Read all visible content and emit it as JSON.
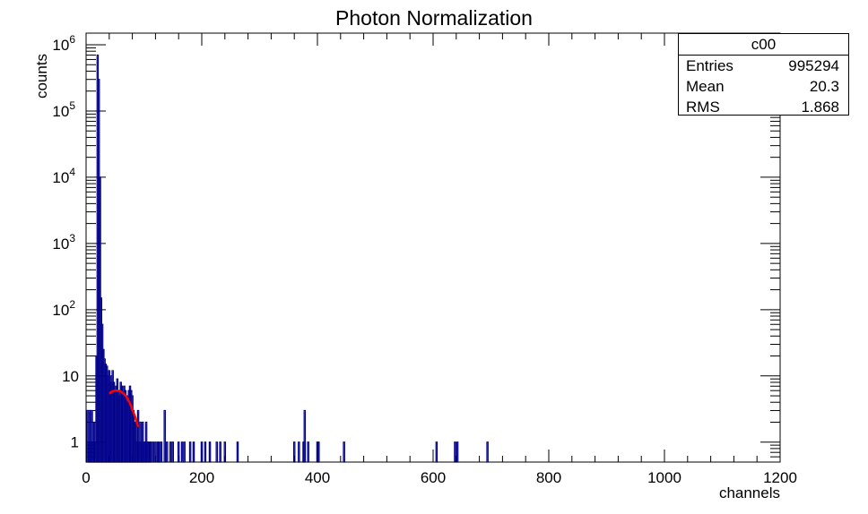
{
  "chart_data": {
    "type": "bar",
    "title": "Photon Normalization",
    "xlabel": "channels",
    "ylabel": "counts",
    "xlim": [
      0,
      1200
    ],
    "ylim": [
      0.5,
      1500000
    ],
    "yscale": "log",
    "x_ticks": [
      "0",
      "200",
      "400",
      "600",
      "800",
      "1000",
      "1200"
    ],
    "y_ticks": [
      {
        "base": "1",
        "exp": ""
      },
      {
        "base": "10",
        "exp": ""
      },
      {
        "base": "10",
        "exp": "2"
      },
      {
        "base": "10",
        "exp": "3"
      },
      {
        "base": "10",
        "exp": "4"
      },
      {
        "base": "10",
        "exp": "5"
      },
      {
        "base": "10",
        "exp": "6"
      }
    ],
    "series": [
      {
        "type": "histogram",
        "color": "#00008b",
        "bin_width": 2,
        "x": [
          2,
          4,
          6,
          8,
          10,
          12,
          14,
          16,
          18,
          20,
          22,
          24,
          26,
          28,
          30,
          32,
          34,
          36,
          38,
          40,
          42,
          44,
          46,
          48,
          50,
          52,
          54,
          56,
          58,
          60,
          62,
          64,
          66,
          68,
          70,
          72,
          74,
          76,
          78,
          80,
          82,
          84,
          86,
          88,
          90,
          92,
          94,
          96,
          98,
          100,
          102,
          104,
          106,
          108,
          110,
          112,
          116,
          120,
          124,
          126,
          130,
          136,
          140,
          146,
          150,
          160,
          166,
          170,
          180,
          186,
          200,
          206,
          214,
          226,
          232,
          240,
          262,
          360,
          368,
          376,
          378,
          384,
          400,
          402,
          446,
          606,
          638,
          642,
          694
        ],
        "y": [
          3,
          1,
          3,
          1,
          3,
          1,
          2,
          1,
          20,
          700000,
          300000,
          10000,
          150,
          60,
          25,
          18,
          15,
          14,
          10,
          12,
          8,
          10,
          12,
          8,
          6,
          7,
          9,
          6,
          5,
          8,
          7,
          5,
          7,
          6,
          5,
          4,
          6,
          7,
          6,
          5,
          3,
          2,
          2,
          1,
          3,
          1,
          2,
          1,
          2,
          1,
          1,
          2,
          1,
          1,
          1,
          1,
          1,
          1,
          1,
          1,
          1,
          3,
          1,
          1,
          1,
          1,
          1,
          1,
          1,
          1,
          1,
          1,
          1,
          1,
          1,
          1,
          1,
          1,
          1,
          1,
          3,
          1,
          1,
          1,
          1,
          1,
          1,
          1,
          1
        ]
      },
      {
        "type": "fit",
        "color": "#ff0000",
        "x": [
          40,
          45,
          50,
          55,
          60,
          65,
          70,
          75,
          80,
          85,
          90
        ],
        "y": [
          5.4,
          5.8,
          6.0,
          6.0,
          5.8,
          5.4,
          4.8,
          4.0,
          3.1,
          2.4,
          1.7
        ]
      }
    ],
    "legend": "top-right",
    "stats": {
      "title": "c00",
      "rows": [
        {
          "label": "Entries",
          "value": "995294"
        },
        {
          "label": "Mean",
          "value": "20.3"
        },
        {
          "label": "RMS",
          "value": "1.868"
        }
      ]
    }
  }
}
